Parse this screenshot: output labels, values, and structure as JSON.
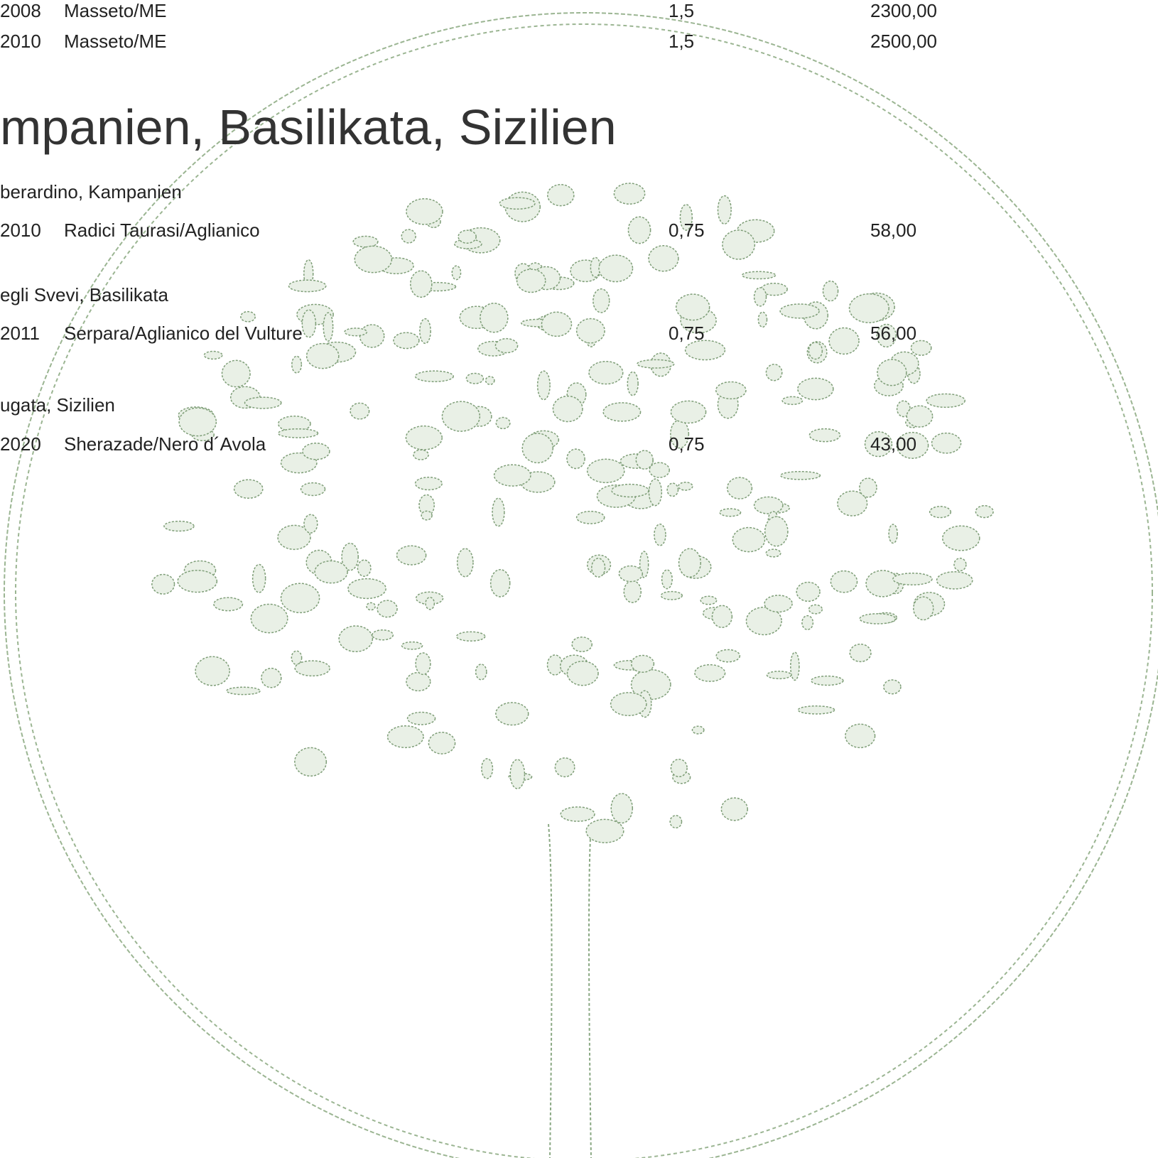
{
  "top_rows": [
    {
      "year": "2008",
      "name": "Masseto/ME",
      "volume": "1,5",
      "price": "2300,00"
    },
    {
      "year": "2010",
      "name": "Masseto/ME",
      "volume": "1,5",
      "price": "2500,00"
    }
  ],
  "heading": "mpanien, Basilikata, Sizilien",
  "sections": [
    {
      "producer": "berardino, Kampanien",
      "rows": [
        {
          "year": "2010",
          "name": "Radici Taurasi/Aglianico",
          "volume": "0,75",
          "price": "58,00"
        }
      ]
    },
    {
      "producer": "egli Svevi, Basilikata",
      "rows": [
        {
          "year": "2011",
          "name": "Serpara/Aglianico del Vulture",
          "volume": "0,75",
          "price": "56,00"
        }
      ]
    },
    {
      "producer": "ugata, Sizilien",
      "rows": [
        {
          "year": "2020",
          "name": "Sherazade/Nero d´Avola",
          "volume": "0,75",
          "price": "43,00"
        }
      ]
    }
  ]
}
